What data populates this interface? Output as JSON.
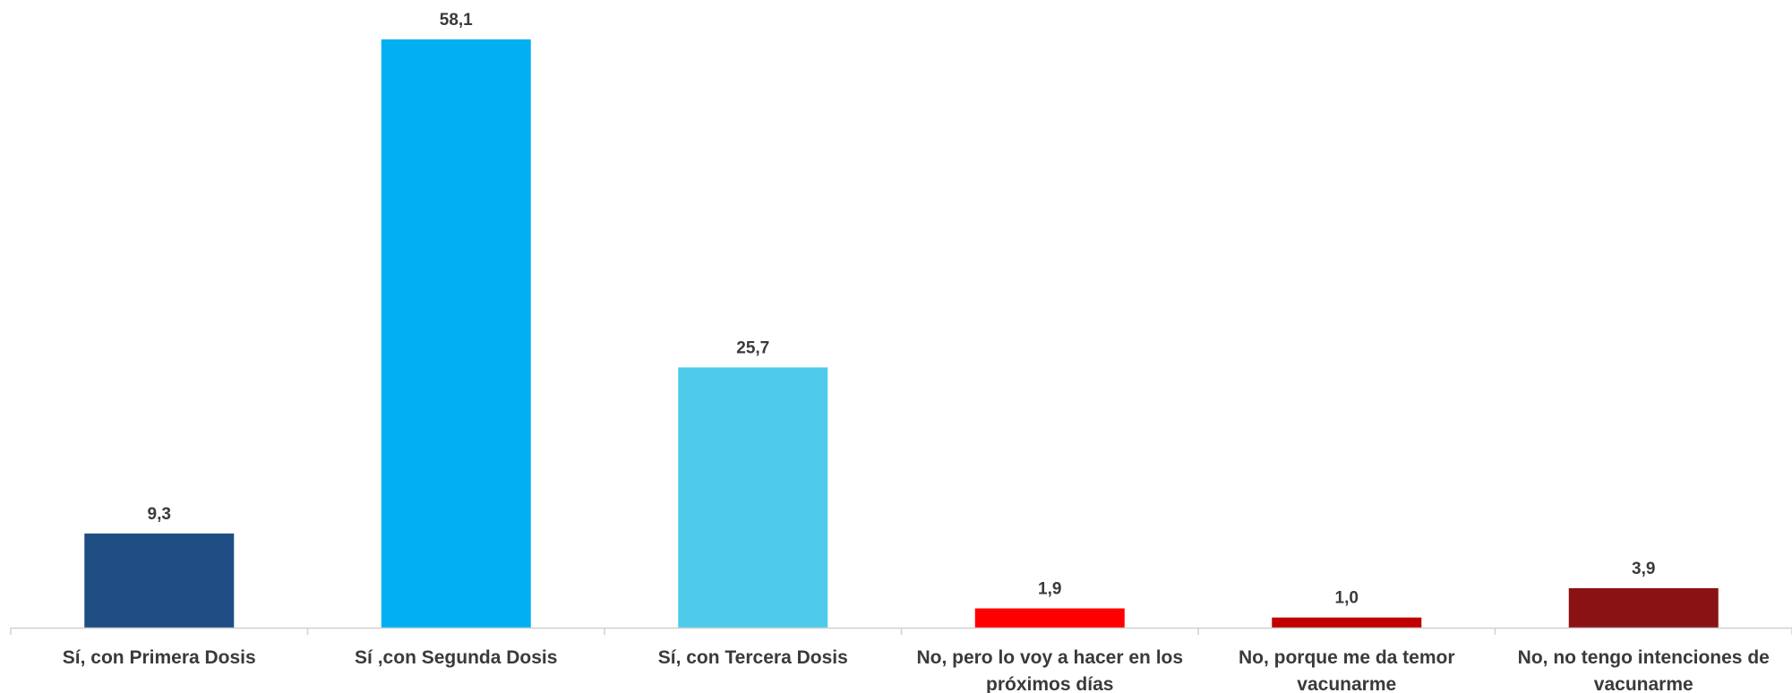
{
  "chart_data": {
    "type": "bar",
    "categories": [
      [
        "Sí, con Primera Dosis"
      ],
      [
        "Sí ,con Segunda Dosis"
      ],
      [
        "Sí, con Tercera Dosis"
      ],
      [
        "No, pero lo voy a hacer en los",
        "próximos días"
      ],
      [
        "No, porque me da temor",
        "vacunarme"
      ],
      [
        "No, no tengo intenciones de",
        "vacunarme"
      ]
    ],
    "values": [
      9.3,
      58.1,
      25.7,
      1.9,
      1.0,
      3.9
    ],
    "data_labels": [
      "9,3",
      "58,1",
      "25,7",
      "1,9",
      "1,0",
      "3,9"
    ],
    "colors": [
      "#1f4e85",
      "#00b0f0",
      "#4ecbeb",
      "#ff0000",
      "#c00000",
      "#8b1214"
    ],
    "axis_color": "#d0d0d0",
    "ylim": [
      0,
      60
    ],
    "grid": false,
    "legend": "none"
  }
}
